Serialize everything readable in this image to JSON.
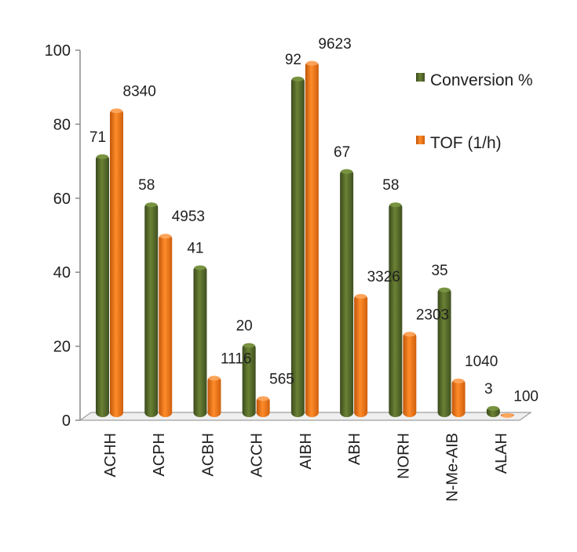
{
  "chart_data": {
    "type": "bar",
    "title": "",
    "xlabel": "",
    "ylabel": "",
    "ylim": [
      0,
      100
    ],
    "yticks": [
      0,
      20,
      40,
      60,
      80,
      100
    ],
    "grid": false,
    "legend": "right",
    "categories": [
      "ACHH",
      "ACPH",
      "ACBH",
      "ACCH",
      "AIBH",
      "ABH",
      "NORH",
      "N-Me-AIB",
      "ALAH"
    ],
    "series": [
      {
        "name": "Conversion %",
        "color": "#4f6228",
        "values": [
          71,
          58,
          41,
          20,
          92,
          67,
          58,
          35,
          3
        ],
        "labels": [
          "71",
          "58",
          "41",
          "20",
          "92",
          "67",
          "58",
          "35",
          "3"
        ]
      },
      {
        "name": "TOF (1/h)",
        "color": "#e46c0a",
        "values": [
          83.4,
          49.53,
          11.16,
          5.65,
          96.23,
          33.26,
          23.03,
          10.4,
          1.0
        ],
        "labels": [
          "8340",
          "4953",
          "1116",
          "565",
          "9623",
          "3326",
          "2303",
          "1040",
          "100"
        ]
      }
    ]
  }
}
